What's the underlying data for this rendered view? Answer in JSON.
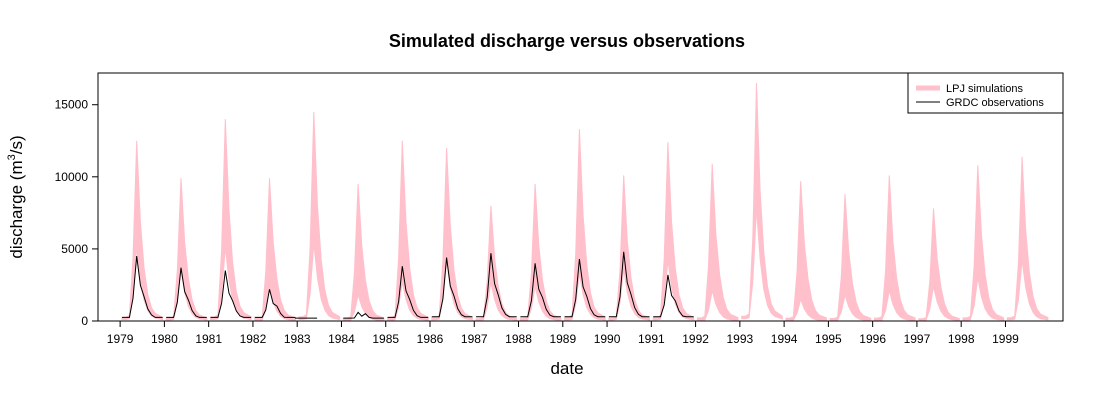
{
  "chart_data": {
    "type": "area",
    "title": "Simulated discharge versus observations",
    "xlabel": "date",
    "ylabel": "discharge (m",
    "ylabel_sup": "3",
    "ylabel_tail": "/s)",
    "xlim": [
      1978.5,
      2000.3
    ],
    "ylim": [
      0,
      17200
    ],
    "x_ticks": [
      1979,
      1980,
      1981,
      1982,
      1983,
      1984,
      1985,
      1986,
      1987,
      1988,
      1989,
      1990,
      1991,
      1992,
      1993,
      1994,
      1995,
      1996,
      1997,
      1998,
      1999
    ],
    "y_ticks": [
      0,
      5000,
      10000,
      15000
    ],
    "grid": false,
    "legend": {
      "position": "top-right",
      "entries": [
        {
          "label": "LPJ simulations",
          "color": "#ffc0cb"
        },
        {
          "label": "GRDC observations",
          "color": "#000000"
        }
      ]
    },
    "colors": {
      "simulations": "#ffc0cb",
      "observations": "#000000"
    },
    "series": [
      {
        "name": "LPJ simulations",
        "kind": "band",
        "yearly_peak_upper": [
          12500,
          9900,
          14000,
          9900,
          14500,
          9500,
          12500,
          12000,
          8000,
          9500,
          13300,
          10100,
          12400,
          10900,
          16500,
          9700,
          8800,
          10100,
          7800,
          10800,
          11400
        ],
        "yearly_peak_lower": [
          8500,
          6000,
          8500,
          4000,
          9000,
          3000,
          4500,
          7000,
          4500,
          4000,
          5500,
          6000,
          7000,
          3500,
          13000,
          2500,
          3000,
          3500,
          4000,
          5000,
          7000
        ]
      },
      {
        "name": "GRDC observations",
        "kind": "line",
        "yearly_peak": [
          4500,
          3700,
          3500,
          2200,
          null,
          600,
          3800,
          4400,
          4700,
          4000,
          4300,
          4800,
          3200
        ],
        "yearly_base": [
          250,
          250,
          250,
          250,
          200,
          200,
          250,
          300,
          300,
          300,
          300,
          300,
          300
        ]
      }
    ]
  }
}
